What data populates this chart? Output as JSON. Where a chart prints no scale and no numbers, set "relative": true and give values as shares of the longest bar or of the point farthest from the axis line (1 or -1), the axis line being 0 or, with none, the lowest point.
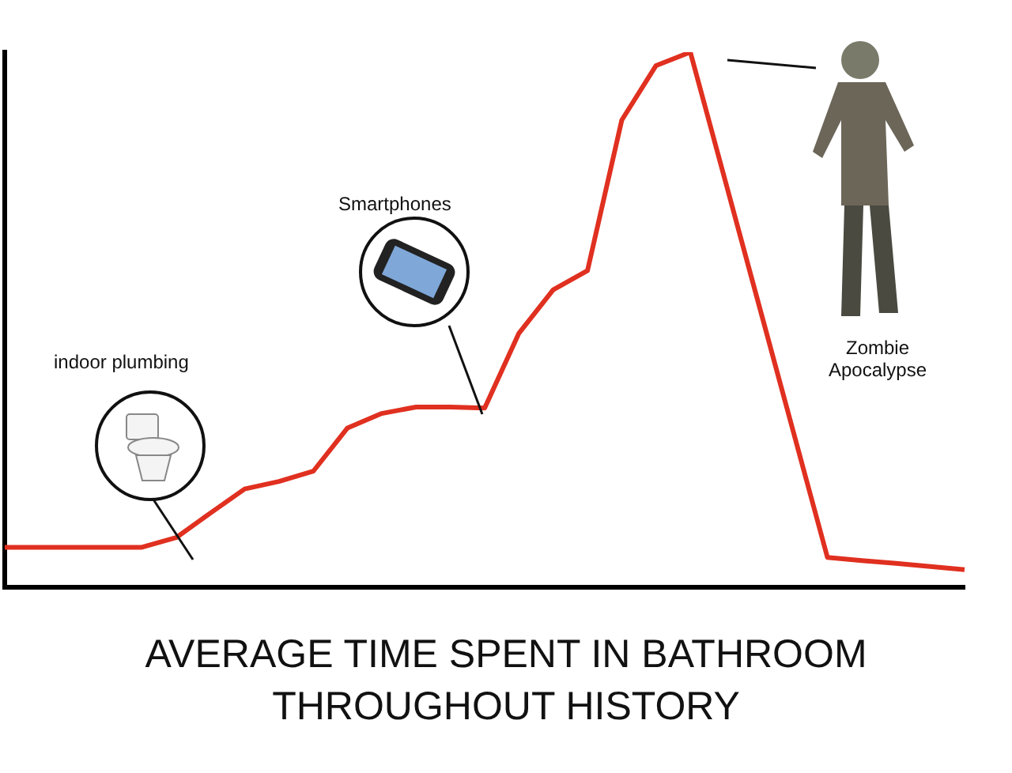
{
  "chart_data": {
    "type": "line",
    "title": "AVERAGE TIME SPENT IN BATHROOM THROUGHOUT HISTORY",
    "relative": true,
    "categories": [
      null,
      null,
      null,
      null,
      null,
      null,
      null,
      null,
      null,
      null,
      null,
      null,
      null,
      null,
      null,
      null,
      null,
      null,
      null,
      null,
      null,
      null,
      null,
      null,
      null,
      null,
      null,
      null,
      null
    ],
    "series": [
      {
        "color": "#e03020",
        "values": [
          0.075,
          0.075,
          0.075,
          0.075,
          0.075,
          0.093,
          0.139,
          0.184,
          0.198,
          0.217,
          0.298,
          0.325,
          0.337,
          0.337,
          0.335,
          0.475,
          0.556,
          0.592,
          0.873,
          0.975,
          1,
          0.764,
          0.528,
          0.292,
          0.056,
          0.05,
          0.045,
          0.039,
          0.033
        ]
      }
    ],
    "annotations": [
      "indoor plumbing",
      "Smartphones",
      "Zombie Apocalypse"
    ],
    "grid": false,
    "legend": false,
    "marker": "none",
    "line_style": "solid"
  }
}
